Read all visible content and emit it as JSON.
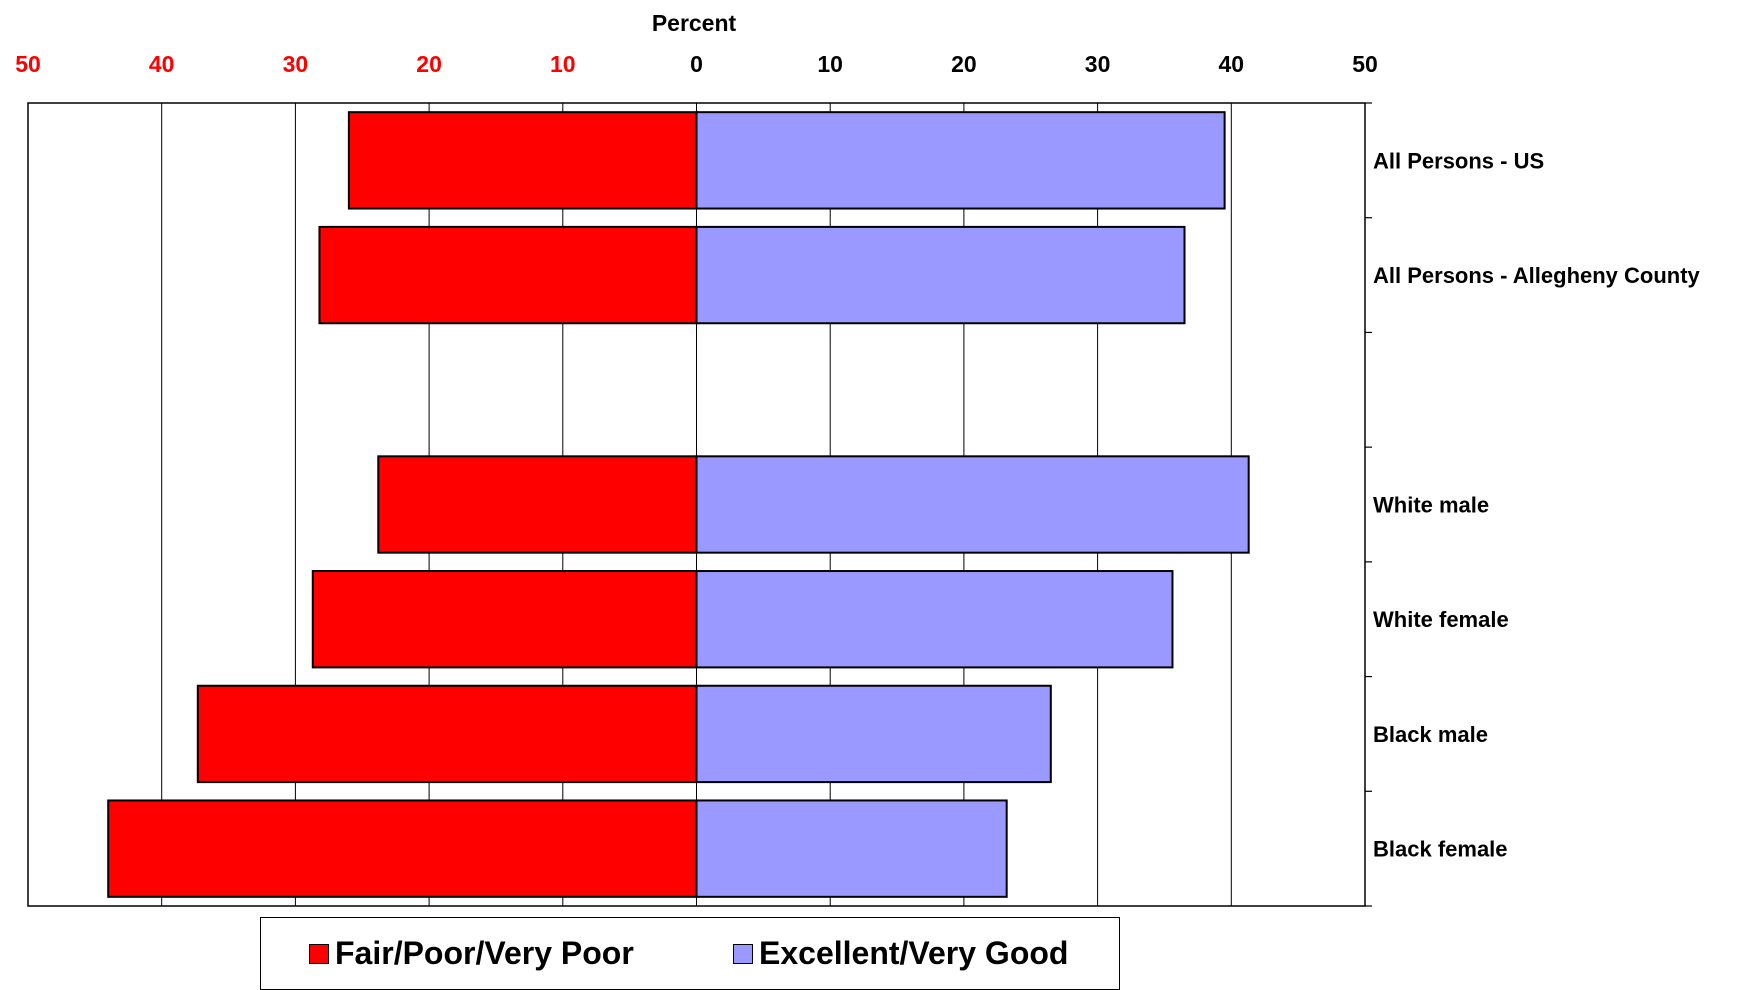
{
  "chart_data": {
    "type": "bar",
    "orientation": "horizontal-diverging",
    "xlabel": "Percent",
    "xlim": [
      -50,
      50
    ],
    "x_ticks": [
      "50",
      "40",
      "30",
      "20",
      "10",
      "0",
      "10",
      "20",
      "30",
      "40",
      "50"
    ],
    "categories": [
      "All Persons - US",
      "All Persons - Allegheny County",
      "",
      "White male",
      "White female",
      "Black male",
      "Black female"
    ],
    "series": [
      {
        "name": "Fair/Poor/Very Poor",
        "color": "#ff0000",
        "values": [
          26,
          28.2,
          null,
          23.8,
          28.7,
          37.3,
          44
        ]
      },
      {
        "name": "Excellent/Very Good",
        "color": "#9999ff",
        "values": [
          39.5,
          36.5,
          null,
          41.3,
          35.6,
          26.5,
          23.2
        ]
      }
    ],
    "left_tick_color": "#ff0000",
    "right_tick_color": "#000000",
    "grid": true,
    "legend_position": "bottom"
  }
}
